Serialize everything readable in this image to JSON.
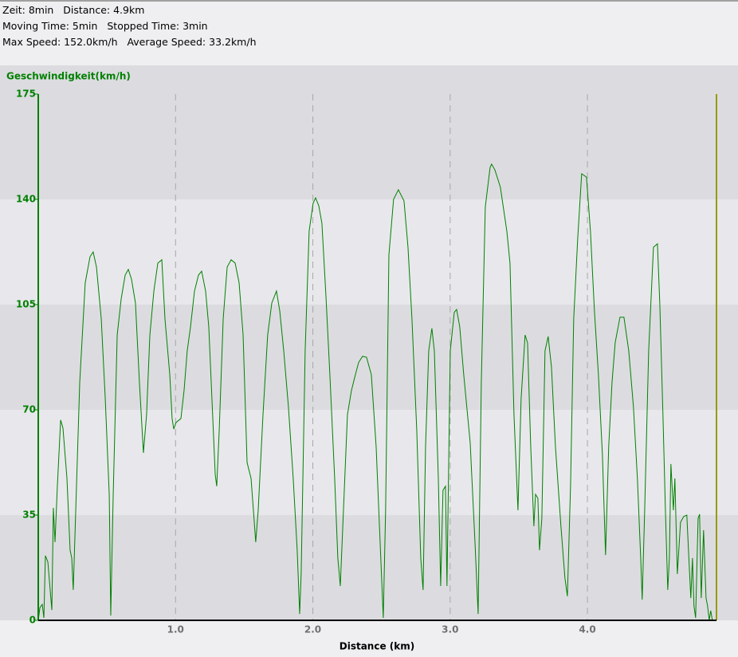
{
  "header": {
    "lines": [
      "Zeit: 8min   Distance: 4.9km",
      "Moving Time: 5min   Stopped Time: 3min",
      "Max Speed: 152.0km/h   Average Speed: 33.2km/h"
    ]
  },
  "chart_data": {
    "type": "line",
    "y_label": "Geschwindigkeit(km/h)",
    "x_label": "Distance (km)",
    "color": "#008000",
    "xlim": [
      0,
      4.94
    ],
    "ylim": [
      0,
      175
    ],
    "xticks": [
      {
        "value": 1,
        "label": "1.0"
      },
      {
        "value": 2,
        "label": "2.0"
      },
      {
        "value": 3,
        "label": "3.0"
      },
      {
        "value": 4,
        "label": "4.0"
      }
    ],
    "yticks": [
      0,
      35,
      70,
      105,
      140,
      175
    ],
    "grid": true,
    "x": [
      0,
      0.012,
      0.029,
      0.041,
      0.052,
      0.07,
      0.099,
      0.11,
      0.122,
      0.139,
      0.163,
      0.18,
      0.209,
      0.232,
      0.244,
      0.255,
      0.273,
      0.302,
      0.342,
      0.377,
      0.4,
      0.424,
      0.459,
      0.488,
      0.517,
      0.528,
      0.546,
      0.575,
      0.604,
      0.633,
      0.656,
      0.679,
      0.708,
      0.737,
      0.766,
      0.789,
      0.813,
      0.842,
      0.871,
      0.9,
      0.923,
      0.958,
      0.975,
      0.987,
      1.004,
      1.039,
      1.062,
      1.085,
      1.109,
      1.138,
      1.167,
      1.19,
      1.219,
      1.242,
      1.265,
      1.289,
      1.3,
      1.318,
      1.347,
      1.376,
      1.405,
      1.434,
      1.463,
      1.492,
      1.521,
      1.55,
      1.567,
      1.584,
      1.602,
      1.637,
      1.671,
      1.701,
      1.735,
      1.759,
      1.788,
      1.822,
      1.857,
      1.886,
      1.904,
      1.915,
      1.944,
      1.973,
      2.002,
      2.02,
      2.043,
      2.066,
      2.095,
      2.124,
      2.159,
      2.182,
      2.2,
      2.223,
      2.252,
      2.281,
      2.31,
      2.333,
      2.362,
      2.391,
      2.426,
      2.461,
      2.49,
      2.513,
      2.53,
      2.554,
      2.588,
      2.623,
      2.664,
      2.693,
      2.722,
      2.757,
      2.786,
      2.803,
      2.821,
      2.844,
      2.867,
      2.885,
      2.914,
      2.931,
      2.948,
      2.966,
      2.977,
      3.001,
      3.03,
      3.047,
      3.07,
      3.099,
      3.146,
      3.181,
      3.204,
      3.227,
      3.256,
      3.291,
      3.302,
      3.326,
      3.366,
      3.413,
      3.436,
      3.465,
      3.494,
      3.517,
      3.546,
      3.564,
      3.587,
      3.61,
      3.622,
      3.639,
      3.651,
      3.668,
      3.691,
      3.714,
      3.738,
      3.767,
      3.807,
      3.836,
      3.854,
      3.877,
      3.9,
      3.929,
      3.958,
      3.993,
      4.022,
      4.051,
      4.08,
      4.109,
      4.132,
      4.155,
      4.179,
      4.202,
      4.237,
      4.266,
      4.301,
      4.335,
      4.364,
      4.388,
      4.399,
      4.417,
      4.446,
      4.481,
      4.51,
      4.527,
      4.55,
      4.568,
      4.585,
      4.597,
      4.608,
      4.626,
      4.637,
      4.655,
      4.678,
      4.701,
      4.724,
      4.736,
      4.753,
      4.765,
      4.776,
      4.788,
      4.806,
      4.817,
      4.829,
      4.846,
      4.864,
      4.875,
      4.887,
      4.898,
      4.91
    ],
    "values": [
      0,
      4.2,
      5.3,
      0.8,
      21.5,
      19.4,
      3.4,
      37.4,
      26.0,
      44.5,
      66.6,
      63.9,
      47.2,
      23.3,
      20.7,
      10.1,
      36.6,
      79.0,
      112.2,
      120.9,
      122.5,
      117.5,
      100.2,
      73.7,
      41.9,
      1.6,
      41.9,
      94.9,
      106.9,
      114.8,
      116.7,
      113.5,
      105.5,
      79.0,
      55.7,
      68.4,
      94.9,
      109.5,
      118.8,
      119.9,
      100.2,
      81.7,
      67.1,
      63.6,
      65.8,
      67.1,
      76.4,
      89.6,
      97.6,
      109.5,
      114.8,
      116.1,
      109.5,
      97.6,
      73.7,
      48.5,
      44.6,
      63.1,
      100.2,
      117.5,
      119.9,
      118.8,
      112.2,
      94.9,
      52.5,
      47.2,
      36.6,
      26.0,
      36.6,
      68.4,
      94.9,
      105.5,
      109.5,
      102.9,
      89.6,
      71.1,
      47.2,
      23.3,
      2.1,
      15.4,
      89.6,
      129.4,
      138.7,
      140.5,
      137.9,
      132.1,
      108.2,
      81.7,
      47.2,
      20.7,
      11.4,
      36.6,
      68.4,
      76.4,
      81.7,
      85.7,
      87.8,
      87.5,
      81.7,
      57.8,
      26.0,
      0.8,
      36.6,
      121.5,
      140.0,
      143.2,
      139.5,
      124.1,
      100.2,
      63.1,
      20.7,
      10.1,
      57.8,
      89.6,
      97.1,
      89.6,
      47.2,
      11.4,
      43.2,
      44.6,
      11.4,
      89.6,
      102.4,
      103.4,
      97.6,
      81.7,
      59.1,
      26.0,
      2.1,
      79.0,
      137.4,
      150.6,
      151.7,
      149.8,
      144.0,
      129.4,
      118.8,
      68.4,
      36.6,
      73.7,
      94.9,
      92.3,
      57.8,
      31.3,
      41.9,
      40.6,
      23.3,
      33.9,
      89.6,
      94.4,
      84.3,
      57.8,
      31.3,
      14.1,
      8.0,
      44.6,
      100.2,
      126.8,
      148.5,
      147.4,
      129.4,
      102.9,
      81.7,
      55.2,
      21.7,
      57.8,
      79.0,
      92.3,
      100.8,
      100.8,
      89.6,
      71.1,
      47.2,
      20.7,
      6.9,
      36.6,
      89.6,
      124.1,
      125.2,
      105.5,
      68.4,
      36.6,
      10.1,
      20.7,
      52.0,
      36.6,
      47.2,
      15.4,
      32.6,
      34.5,
      35.0,
      23.3,
      7.4,
      20.7,
      4.8,
      0.8,
      33.9,
      35.3,
      7.4,
      30.0,
      7.4,
      4.8,
      0,
      3.2,
      0
    ]
  }
}
